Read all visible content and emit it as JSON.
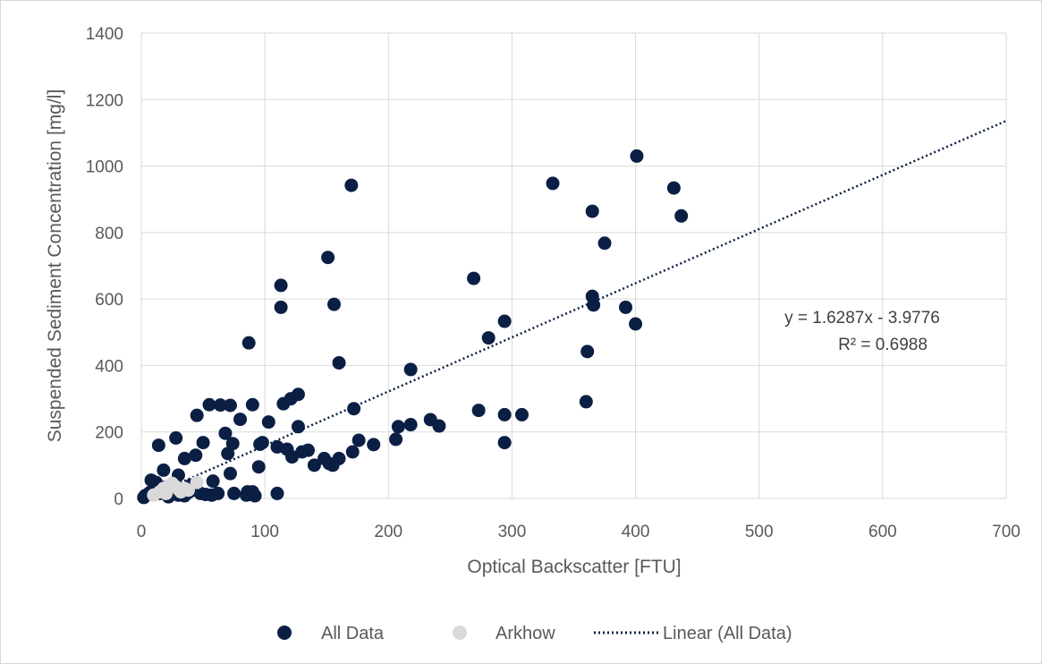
{
  "chart_data": {
    "type": "scatter",
    "xlabel": "Optical Backscatter [FTU]",
    "ylabel": "Suspended Sediment Concentration [mg/l]",
    "xlim": [
      0,
      700
    ],
    "ylim": [
      0,
      1400
    ],
    "xticks": [
      0,
      100,
      200,
      300,
      400,
      500,
      600,
      700
    ],
    "yticks": [
      0,
      200,
      400,
      600,
      800,
      1000,
      1200,
      1400
    ],
    "grid": true,
    "legend_position": "bottom",
    "trendline": {
      "name": "Linear (All Data)",
      "slope": 1.6287,
      "intercept": -3.9776,
      "equation": "y = 1.6287x - 3.9776",
      "r2": "R² = 0.6988",
      "style": "dotted",
      "color": "#0b1f44"
    },
    "series": [
      {
        "name": "All Data",
        "color": "#0b1f44",
        "points": [
          [
            401,
            1030
          ],
          [
            333,
            948
          ],
          [
            170,
            942
          ],
          [
            431,
            934
          ],
          [
            437,
            850
          ],
          [
            365,
            864
          ],
          [
            375,
            768
          ],
          [
            151,
            725
          ],
          [
            269,
            662
          ],
          [
            113,
            641
          ],
          [
            365,
            608
          ],
          [
            113,
            575
          ],
          [
            156,
            584
          ],
          [
            366,
            582
          ],
          [
            392,
            575
          ],
          [
            294,
            533
          ],
          [
            400,
            525
          ],
          [
            281,
            483
          ],
          [
            87,
            468
          ],
          [
            361,
            442
          ],
          [
            160,
            408
          ],
          [
            218,
            388
          ],
          [
            127,
            313
          ],
          [
            121,
            300
          ],
          [
            115,
            285
          ],
          [
            90,
            282
          ],
          [
            55,
            282
          ],
          [
            64,
            281
          ],
          [
            72,
            280
          ],
          [
            360,
            291
          ],
          [
            172,
            270
          ],
          [
            273,
            265
          ],
          [
            294,
            252
          ],
          [
            308,
            252
          ],
          [
            80,
            238
          ],
          [
            103,
            230
          ],
          [
            234,
            237
          ],
          [
            218,
            222
          ],
          [
            241,
            218
          ],
          [
            208,
            216
          ],
          [
            127,
            216
          ],
          [
            45,
            250
          ],
          [
            68,
            196
          ],
          [
            14,
            160
          ],
          [
            28,
            182
          ],
          [
            188,
            162
          ],
          [
            294,
            168
          ],
          [
            176,
            175
          ],
          [
            206,
            178
          ],
          [
            50,
            168
          ],
          [
            74,
            165
          ],
          [
            96,
            163
          ],
          [
            98,
            168
          ],
          [
            110,
            155
          ],
          [
            118,
            148
          ],
          [
            171,
            140
          ],
          [
            130,
            140
          ],
          [
            135,
            145
          ],
          [
            122,
            125
          ],
          [
            160,
            120
          ],
          [
            148,
            120
          ],
          [
            35,
            120
          ],
          [
            44,
            130
          ],
          [
            70,
            135
          ],
          [
            140,
            100
          ],
          [
            155,
            100
          ],
          [
            152,
            105
          ],
          [
            95,
            95
          ],
          [
            72,
            75
          ],
          [
            18,
            85
          ],
          [
            30,
            70
          ],
          [
            8,
            55
          ],
          [
            12,
            48
          ],
          [
            58,
            52
          ],
          [
            40,
            40
          ],
          [
            20,
            35
          ],
          [
            25,
            20
          ],
          [
            5,
            12
          ],
          [
            3,
            8
          ],
          [
            10,
            25
          ],
          [
            15,
            15
          ],
          [
            48,
            15
          ],
          [
            52,
            12
          ],
          [
            57,
            10
          ],
          [
            62,
            15
          ],
          [
            75,
            15
          ],
          [
            85,
            10
          ],
          [
            88,
            12
          ],
          [
            92,
            8
          ],
          [
            110,
            15
          ],
          [
            30,
            10
          ],
          [
            35,
            8
          ],
          [
            22,
            5
          ],
          [
            2,
            3
          ],
          [
            7,
            18
          ],
          [
            13,
            30
          ],
          [
            17,
            22
          ],
          [
            27,
            40
          ],
          [
            33,
            28
          ],
          [
            38,
            18
          ],
          [
            43,
            25
          ],
          [
            86,
            20
          ],
          [
            90,
            20
          ]
        ]
      },
      {
        "name": "Arkhow",
        "color": "#d9d9d9",
        "points": [
          [
            45,
            48
          ],
          [
            35,
            30
          ],
          [
            30,
            28
          ],
          [
            25,
            45
          ],
          [
            22,
            38
          ],
          [
            18,
            30
          ],
          [
            15,
            20
          ],
          [
            20,
            15
          ],
          [
            10,
            10
          ],
          [
            28,
            35
          ],
          [
            32,
            20
          ],
          [
            38,
            25
          ]
        ]
      }
    ]
  }
}
